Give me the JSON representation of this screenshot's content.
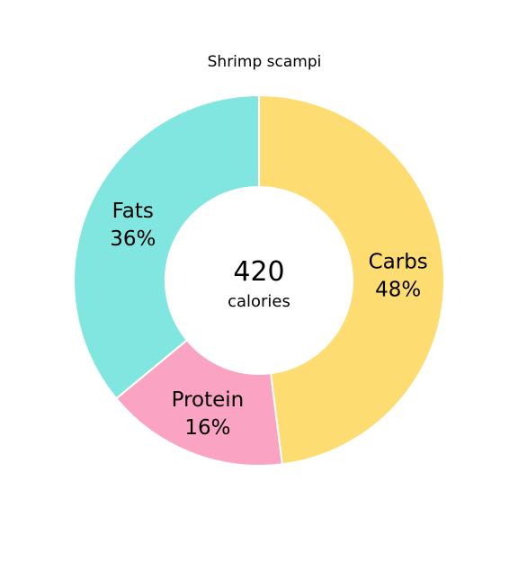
{
  "chart_data": {
    "type": "pie",
    "title": "Shrimp scampi",
    "center_value": "420",
    "center_label": "calories",
    "slices": [
      {
        "label": "Carbs",
        "value": 48,
        "value_label": "48%",
        "color": "#FDDC72"
      },
      {
        "label": "Protein",
        "value": 16,
        "value_label": "16%",
        "color": "#FBA3C3"
      },
      {
        "label": "Fats",
        "value": 36,
        "value_label": "36%",
        "color": "#82E6E0"
      }
    ]
  }
}
